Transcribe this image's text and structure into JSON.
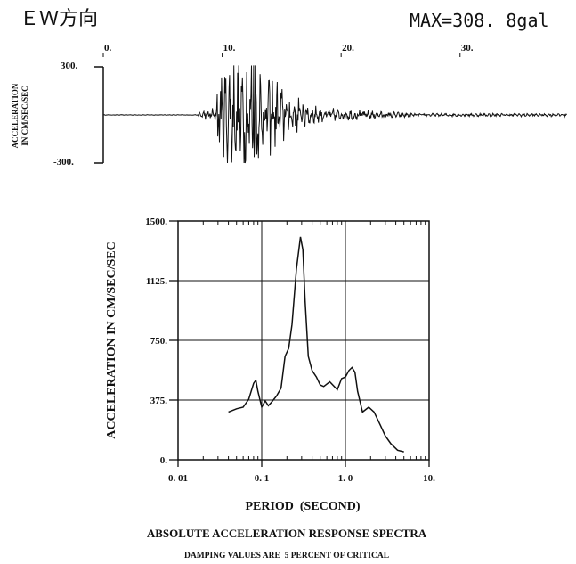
{
  "header": {
    "direction_title": "ＥＷ方向",
    "max_label": "MAX=308. 8gal"
  },
  "chart_data": [
    {
      "type": "line",
      "name": "acceleration-time-history",
      "ylabel_line1": "ACCELERATION",
      "ylabel_line2": "IN CM/SEC/SEC",
      "xticks": [
        "0.",
        "10.",
        "20.",
        "30."
      ],
      "yticks": [
        "300.",
        "-300."
      ],
      "xlim": [
        0,
        39
      ],
      "ylim": [
        -300,
        300
      ],
      "peak": 308.8
    },
    {
      "type": "line",
      "name": "absolute-acceleration-response-spectrum",
      "xscale": "log",
      "xlim": [
        0.01,
        10
      ],
      "ylim": [
        0,
        1500
      ],
      "xlabel": "PERIOD  (SECOND)",
      "ylabel": "ACCELERATION IN CM/SEC/SEC",
      "xticks": [
        "0. 01",
        "0. 1",
        "1. 0",
        "10."
      ],
      "yticks": [
        "0.",
        "375.",
        "750.",
        "1125.",
        "1500."
      ],
      "caption": "ABSOLUTE ACCELERATION RESPONSE SPECTRA",
      "note": "DAMPING VALUES ARE  5 PERCENT OF CRITICAL",
      "grid": true,
      "x": [
        0.04,
        0.05,
        0.06,
        0.07,
        0.08,
        0.085,
        0.09,
        0.1,
        0.11,
        0.12,
        0.13,
        0.15,
        0.17,
        0.19,
        0.21,
        0.23,
        0.26,
        0.29,
        0.31,
        0.33,
        0.36,
        0.4,
        0.45,
        0.5,
        0.55,
        0.65,
        0.8,
        0.9,
        1.0,
        1.1,
        1.2,
        1.3,
        1.4,
        1.6,
        1.9,
        2.2,
        2.6,
        3.0,
        3.5,
        4.2,
        5.0
      ],
      "y": [
        300,
        320,
        330,
        380,
        480,
        500,
        430,
        330,
        370,
        340,
        360,
        400,
        450,
        650,
        700,
        850,
        1200,
        1400,
        1320,
        1000,
        650,
        560,
        520,
        470,
        460,
        490,
        440,
        510,
        520,
        560,
        580,
        550,
        430,
        300,
        330,
        300,
        220,
        150,
        100,
        60,
        50
      ]
    }
  ]
}
